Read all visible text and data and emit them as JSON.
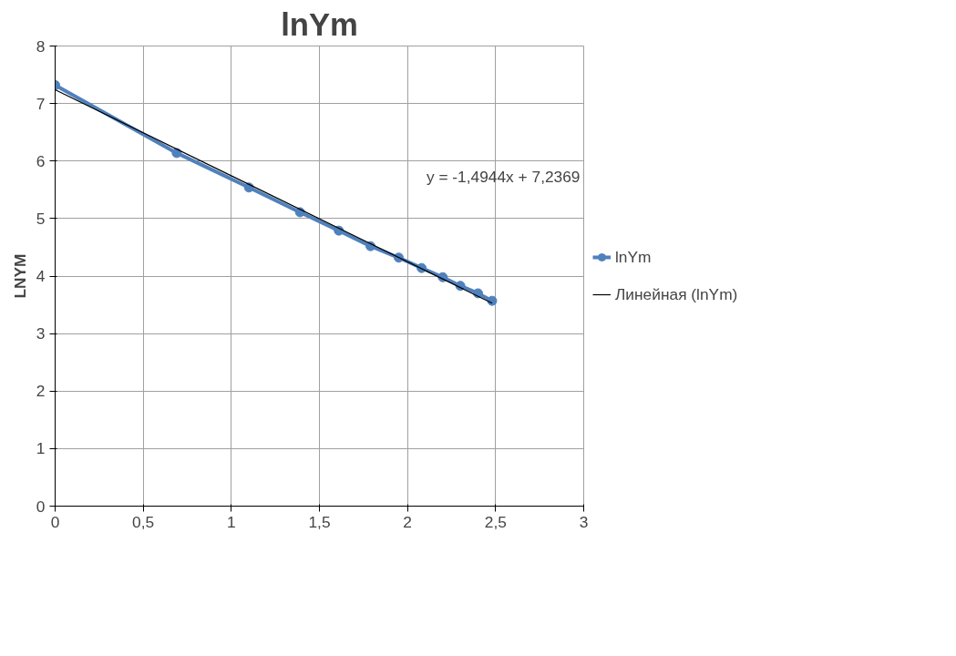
{
  "chart_data": {
    "type": "line",
    "title": "lnYm",
    "ylabel": "LNYM",
    "x": [
      0,
      0.69,
      1.1,
      1.39,
      1.61,
      1.79,
      1.95,
      2.08,
      2.2,
      2.3,
      2.4,
      2.48
    ],
    "series": [
      {
        "name": "lnYm",
        "color": "#4f81bd",
        "values": [
          7.32,
          6.14,
          5.54,
          5.11,
          4.79,
          4.52,
          4.32,
          4.14,
          3.98,
          3.83,
          3.7,
          3.57
        ],
        "marker": "circle"
      },
      {
        "name": "Линейная (lnYm)",
        "type": "line",
        "color": "#000000",
        "x": [
          0,
          2.48
        ],
        "values": [
          7.24,
          3.53
        ],
        "marker": "none"
      }
    ],
    "annotations": [
      "y = -1,4944x + 7,2369"
    ],
    "xlim": [
      0,
      3
    ],
    "ylim": [
      0,
      8
    ],
    "xticks": [
      0,
      {
        "value": 0.5,
        "label": "0,5"
      },
      1,
      {
        "value": 1.5,
        "label": "1,5"
      },
      2,
      {
        "value": 2.5,
        "label": "2,5"
      },
      3
    ],
    "yticks": [
      0,
      1,
      2,
      3,
      4,
      5,
      6,
      7,
      8
    ],
    "grid": true,
    "legend": "right",
    "line_style": "solid"
  }
}
